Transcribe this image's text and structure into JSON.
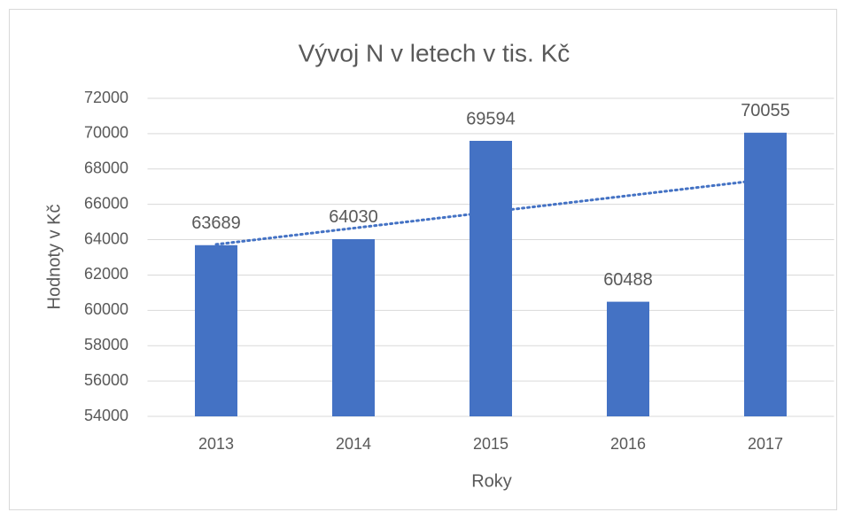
{
  "chart_data": {
    "type": "bar",
    "title": "Vývoj N v letech  v tis. Kč",
    "x_label": "Roky",
    "y_label": "Hodnoty v Kč",
    "categories": [
      "2013",
      "2014",
      "2015",
      "2016",
      "2017"
    ],
    "values": [
      63689,
      64030,
      69594,
      60488,
      70055
    ],
    "color": "#4472c4",
    "ylim": [
      54000,
      72000
    ],
    "yticks": [
      54000,
      56000,
      58000,
      60000,
      62000,
      64000,
      66000,
      68000,
      70000,
      72000
    ],
    "grid": true,
    "data_labels": true,
    "trendline": "linear"
  }
}
